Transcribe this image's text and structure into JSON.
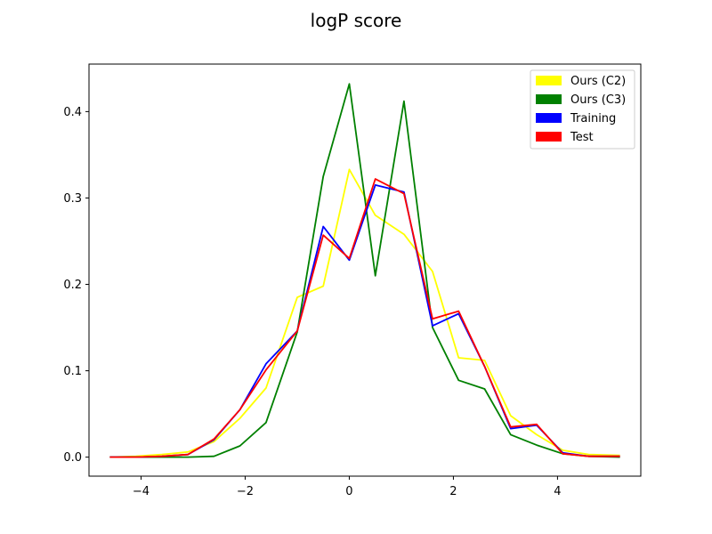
{
  "chart_data": {
    "type": "line",
    "title": "logP score",
    "xlabel": "",
    "ylabel": "",
    "xlim": [
      -5.0,
      5.6
    ],
    "ylim": [
      -0.022,
      0.455
    ],
    "x_ticks": [
      -4,
      -2,
      0,
      2,
      4
    ],
    "x_tick_labels": [
      "−4",
      "−2",
      "0",
      "2",
      "4"
    ],
    "y_ticks": [
      0.0,
      0.1,
      0.2,
      0.3,
      0.4
    ],
    "y_tick_labels": [
      "0.0",
      "0.1",
      "0.2",
      "0.3",
      "0.4"
    ],
    "grid": false,
    "legend_position": "top-right",
    "x": [
      -4.6,
      -4.1,
      -3.6,
      -3.1,
      -2.6,
      -2.1,
      -1.6,
      -1.0,
      -0.5,
      0.0,
      0.5,
      1.05,
      1.6,
      2.1,
      2.6,
      3.1,
      3.6,
      4.1,
      4.6,
      5.2
    ],
    "series": [
      {
        "name": "Ours (C2)",
        "color": "#ffff00",
        "values": [
          0.0,
          0.001,
          0.003,
          0.006,
          0.018,
          0.045,
          0.08,
          0.185,
          0.198,
          0.333,
          0.28,
          0.258,
          0.215,
          0.115,
          0.112,
          0.048,
          0.026,
          0.008,
          0.003,
          0.002
        ]
      },
      {
        "name": "Ours (C3)",
        "color": "#008000",
        "values": [
          0.0,
          0.0,
          0.0,
          0.0,
          0.001,
          0.013,
          0.04,
          0.145,
          0.325,
          0.432,
          0.21,
          0.412,
          0.15,
          0.089,
          0.079,
          0.026,
          0.014,
          0.004,
          0.001,
          0.0
        ]
      },
      {
        "name": "Training",
        "color": "#0000ff",
        "values": [
          0.0,
          0.0,
          0.001,
          0.003,
          0.02,
          0.055,
          0.108,
          0.146,
          0.267,
          0.228,
          0.315,
          0.307,
          0.152,
          0.166,
          0.105,
          0.033,
          0.037,
          0.005,
          0.001,
          0.001
        ]
      },
      {
        "name": "Test",
        "color": "#ff0000",
        "values": [
          0.0,
          0.0,
          0.001,
          0.003,
          0.021,
          0.055,
          0.101,
          0.146,
          0.257,
          0.23,
          0.322,
          0.305,
          0.16,
          0.169,
          0.105,
          0.035,
          0.038,
          0.004,
          0.001,
          0.001
        ]
      }
    ]
  }
}
